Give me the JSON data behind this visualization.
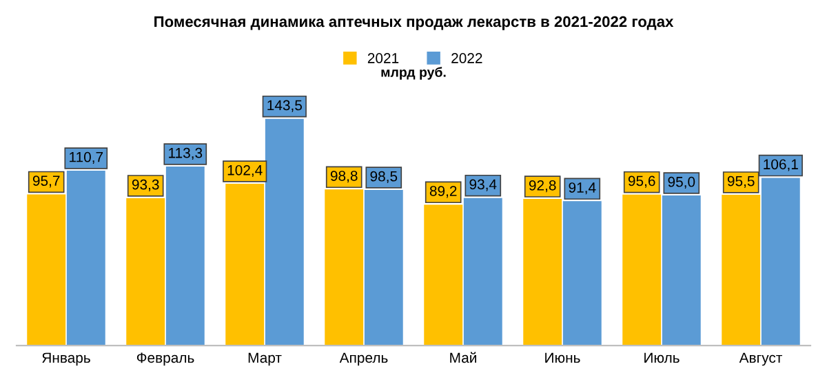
{
  "chart_data": {
    "type": "bar",
    "title": "Помесячная динамика аптечных продаж лекарств в 2021-2022 годах",
    "subtitle": "млрд руб.",
    "categories": [
      "Январь",
      "Февраль",
      "Март",
      "Апрель",
      "Май",
      "Июнь",
      "Июль",
      "Август"
    ],
    "series": [
      {
        "name": "2021",
        "color": "#ffc000",
        "values": [
          95.7,
          93.3,
          102.4,
          98.8,
          89.2,
          92.8,
          95.6,
          95.5
        ],
        "value_labels": [
          "95,7",
          "93,3",
          "102,4",
          "98,8",
          "89,2",
          "92,8",
          "95,6",
          "95,5"
        ]
      },
      {
        "name": "2022",
        "color": "#5b9bd5",
        "values": [
          110.7,
          113.3,
          143.5,
          98.5,
          93.4,
          91.4,
          95.0,
          106.1
        ],
        "value_labels": [
          "110,7",
          "113,3",
          "143,5",
          "98,5",
          "93,4",
          "91,4",
          "95,0",
          "106,1"
        ]
      }
    ],
    "legend": "top",
    "grid": false,
    "tick_labels": "x"
  }
}
